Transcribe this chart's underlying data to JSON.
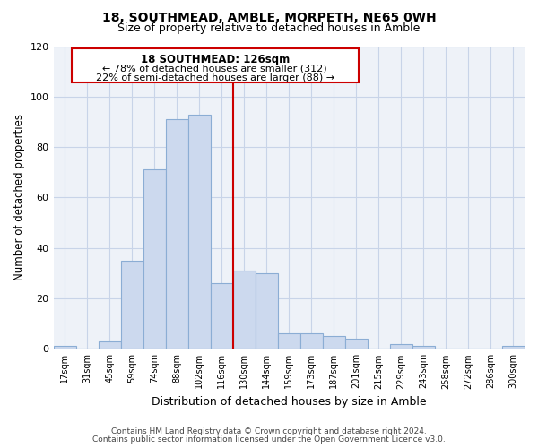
{
  "title": "18, SOUTHMEAD, AMBLE, MORPETH, NE65 0WH",
  "subtitle": "Size of property relative to detached houses in Amble",
  "xlabel": "Distribution of detached houses by size in Amble",
  "ylabel": "Number of detached properties",
  "bar_labels": [
    "17sqm",
    "31sqm",
    "45sqm",
    "59sqm",
    "74sqm",
    "88sqm",
    "102sqm",
    "116sqm",
    "130sqm",
    "144sqm",
    "159sqm",
    "173sqm",
    "187sqm",
    "201sqm",
    "215sqm",
    "229sqm",
    "243sqm",
    "258sqm",
    "272sqm",
    "286sqm",
    "300sqm"
  ],
  "bar_values": [
    1,
    0,
    3,
    35,
    71,
    91,
    93,
    26,
    31,
    30,
    6,
    6,
    5,
    4,
    0,
    2,
    1,
    0,
    0,
    0,
    1
  ],
  "bar_color": "#ccd9ee",
  "bar_edge_color": "#8badd4",
  "vline_x": 7.5,
  "vline_color": "#cc0000",
  "ylim": [
    0,
    120
  ],
  "yticks": [
    0,
    20,
    40,
    60,
    80,
    100,
    120
  ],
  "annotation_title": "18 SOUTHMEAD: 126sqm",
  "annotation_line1": "← 78% of detached houses are smaller (312)",
  "annotation_line2": "22% of semi-detached houses are larger (88) →",
  "annotation_box_color": "#ffffff",
  "annotation_box_edge": "#cc0000",
  "footer1": "Contains HM Land Registry data © Crown copyright and database right 2024.",
  "footer2": "Contains public sector information licensed under the Open Government Licence v3.0.",
  "bg_color": "#ffffff",
  "plot_bg_color": "#eef2f8",
  "grid_color": "#c8d4e8",
  "title_fontsize": 10,
  "subtitle_fontsize": 9
}
